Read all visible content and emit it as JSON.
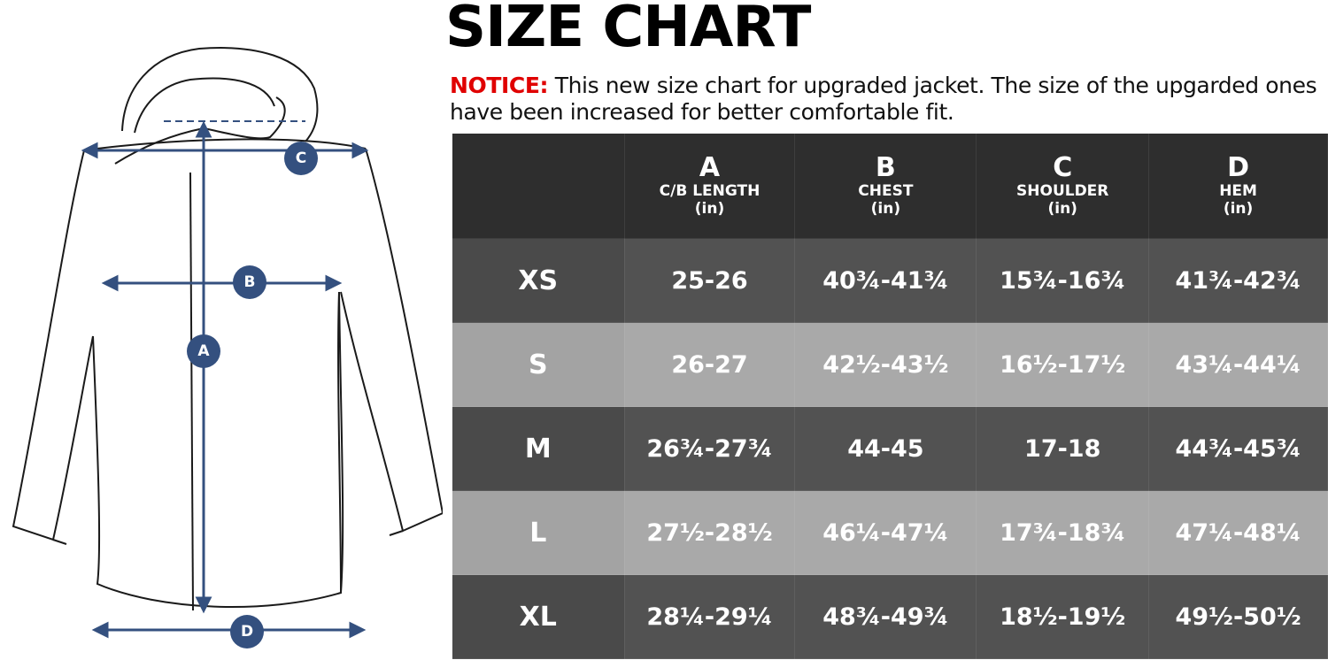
{
  "header": {
    "title": "SIZE CHART",
    "notice_label": "NOTICE:",
    "notice_text": "This new size chart for upgraded jacket. The size of the upgarded ones have been increased for better comfortable fit."
  },
  "diagram": {
    "markers": [
      "A",
      "B",
      "C",
      "D"
    ]
  },
  "table": {
    "columns": [
      {
        "letter": "A",
        "name": "C/B LENGTH",
        "unit": "(in)"
      },
      {
        "letter": "B",
        "name": "CHEST",
        "unit": "(in)"
      },
      {
        "letter": "C",
        "name": "SHOULDER",
        "unit": "(in)"
      },
      {
        "letter": "D",
        "name": "HEM",
        "unit": "(in)"
      }
    ],
    "rows": [
      [
        "XS",
        "25-26",
        "40¾-41¾",
        "15¾-16¾",
        "41¾-42¾"
      ],
      [
        "S",
        "26-27",
        "42½-43½",
        "16½-17½",
        "43¼-44¼"
      ],
      [
        "M",
        "26¾-27¾",
        "44-45",
        "17-18",
        "44¾-45¾"
      ],
      [
        "L",
        "27½-28½",
        "46¼-47¼",
        "17¾-18¾",
        "47¼-48¼"
      ],
      [
        "XL",
        "28¼-29¼",
        "48¾-49¾",
        "18½-19½",
        "49½-50½"
      ]
    ]
  }
}
